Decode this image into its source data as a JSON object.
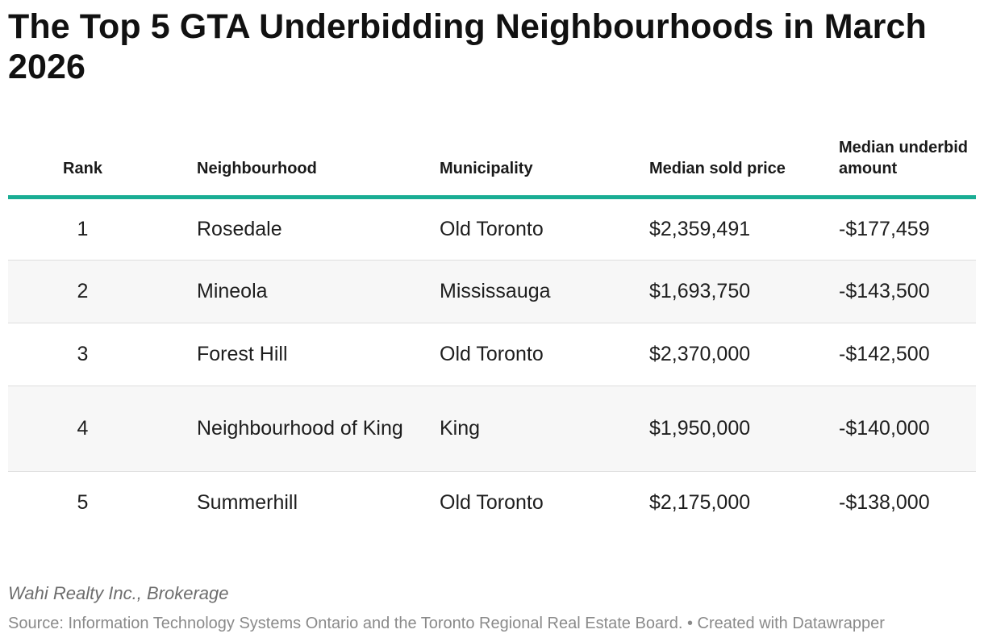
{
  "chart_data": {
    "type": "table",
    "title": "The Top 5 GTA Underbidding Neighbourhoods in March 2026",
    "columns": [
      "Rank",
      "Neighbourhood",
      "Municipality",
      "Median sold price",
      "Median underbid amount"
    ],
    "rows": [
      {
        "rank": "1",
        "neighbourhood": "Rosedale",
        "municipality": "Old Toronto",
        "median_sold_price": "$2,359,491",
        "median_underbid_amount": "-$177,459"
      },
      {
        "rank": "2",
        "neighbourhood": "Mineola",
        "municipality": "Mississauga",
        "median_sold_price": "$1,693,750",
        "median_underbid_amount": "-$143,500"
      },
      {
        "rank": "3",
        "neighbourhood": "Forest Hill",
        "municipality": "Old Toronto",
        "median_sold_price": "$2,370,000",
        "median_underbid_amount": "-$142,500"
      },
      {
        "rank": "4",
        "neighbourhood": "Neighbourhood of King",
        "municipality": "King",
        "median_sold_price": "$1,950,000",
        "median_underbid_amount": "-$140,000"
      },
      {
        "rank": "5",
        "neighbourhood": "Summerhill",
        "municipality": "Old Toronto",
        "median_sold_price": "$2,175,000",
        "median_underbid_amount": "-$138,000"
      }
    ],
    "credit": "Wahi Realty Inc., Brokerage",
    "source": "Source: Information Technology Systems Ontario and the Toronto Regional Real Estate Board. • Created with Datawrapper"
  },
  "colors": {
    "header_rule": "#1aad94",
    "row_shade": "#f7f7f7",
    "text": "#1e1e1e",
    "muted": "#8a8a8a"
  }
}
